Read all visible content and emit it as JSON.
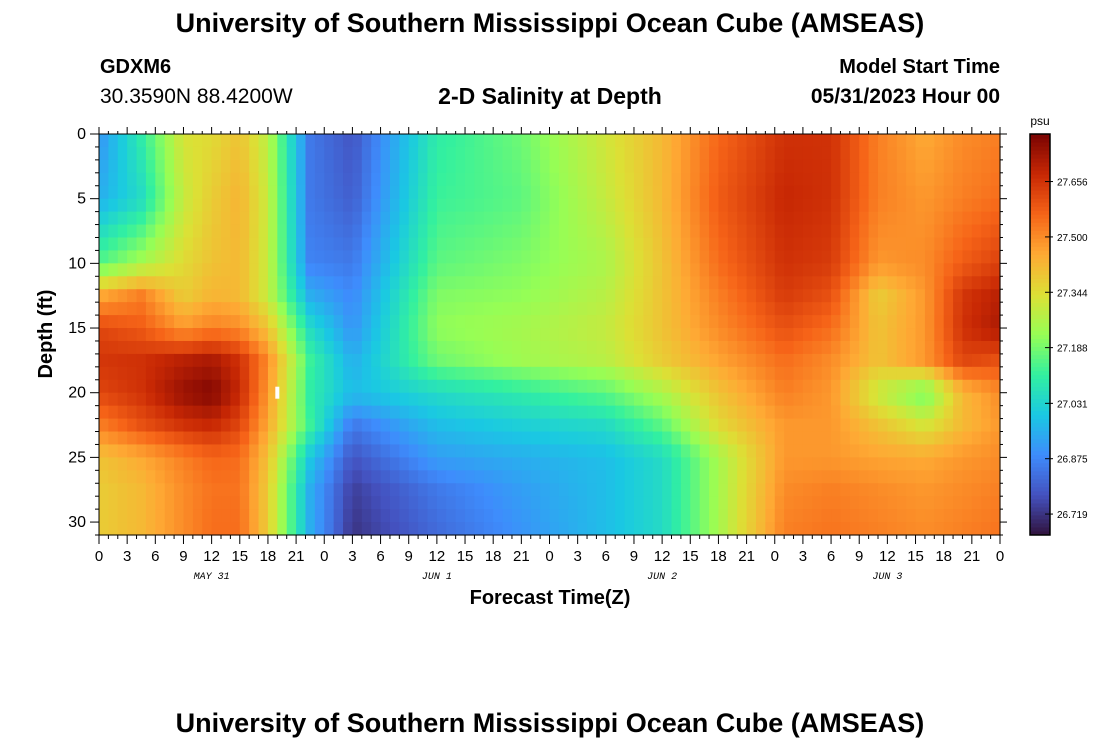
{
  "header": {
    "title": "University of Southern Mississippi Ocean Cube (AMSEAS)",
    "station_id": "GDXM6",
    "coordinates": "30.3590N  88.4200W",
    "plot_title": "2-D Salinity at Depth",
    "model_start_label": "Model Start Time",
    "model_start_value": "05/31/2023 Hour 00"
  },
  "footer": {
    "title": "University of Southern Mississippi Ocean Cube (AMSEAS)"
  },
  "chart_data": {
    "type": "heatmap",
    "xlabel": "Forecast Time(Z)",
    "ylabel": "Depth (ft)",
    "x_tick_labels": [
      "0",
      "3",
      "6",
      "9",
      "12",
      "15",
      "18",
      "21",
      "0",
      "3",
      "6",
      "9",
      "12",
      "15",
      "18",
      "21",
      "0",
      "3",
      "6",
      "9",
      "12",
      "15",
      "18",
      "21",
      "0",
      "3",
      "6",
      "9",
      "12",
      "15",
      "18",
      "21",
      "0"
    ],
    "x_range_hours": [
      0,
      96
    ],
    "day_labels": [
      {
        "hour": 12,
        "label": "MAY 31"
      },
      {
        "hour": 36,
        "label": "JUN 1"
      },
      {
        "hour": 60,
        "label": "JUN 2"
      },
      {
        "hour": 84,
        "label": "JUN 3"
      }
    ],
    "y_tick_values": [
      0,
      5,
      10,
      15,
      20,
      25,
      30
    ],
    "ylim": [
      0,
      31
    ],
    "y_inverted": true,
    "colorbar": {
      "unit": "psu",
      "ticks": [
        27.656,
        27.5,
        27.344,
        27.188,
        27.031,
        26.875,
        26.719
      ],
      "tick_labels": [
        "27.656",
        "27.500",
        "27.344",
        "27.188",
        "27.031",
        "26.875",
        "26.719"
      ],
      "range": [
        26.66,
        27.79
      ],
      "colormap": "turbo"
    },
    "marker": {
      "hour": 19,
      "depth_ft": 20
    },
    "grid": {
      "hours": [
        0,
        4.5,
        9,
        12,
        15,
        18,
        22.5,
        27,
        36,
        45,
        54,
        60,
        66,
        73,
        78,
        83,
        88,
        92,
        96
      ],
      "depths": [
        0,
        5,
        10,
        12.5,
        15,
        17.5,
        20,
        22.5,
        25,
        27.5,
        31
      ],
      "salinity": [
        [
          26.9,
          27.1,
          27.33,
          27.35,
          27.4,
          27.28,
          26.85,
          26.78,
          27.1,
          27.18,
          27.32,
          27.42,
          27.56,
          27.66,
          27.66,
          27.52,
          27.45,
          27.5,
          27.52
        ],
        [
          26.95,
          27.05,
          27.3,
          27.38,
          27.43,
          27.3,
          26.85,
          26.8,
          27.12,
          27.16,
          27.3,
          27.42,
          27.58,
          27.68,
          27.66,
          27.52,
          27.48,
          27.52,
          27.55
        ],
        [
          27.15,
          27.25,
          27.35,
          27.4,
          27.42,
          27.3,
          26.87,
          26.85,
          27.16,
          27.2,
          27.26,
          27.4,
          27.55,
          27.66,
          27.64,
          27.48,
          27.5,
          27.58,
          27.63
        ],
        [
          27.45,
          27.52,
          27.38,
          27.43,
          27.42,
          27.3,
          26.95,
          26.88,
          27.2,
          27.22,
          27.28,
          27.4,
          27.52,
          27.64,
          27.6,
          27.38,
          27.48,
          27.65,
          27.7
        ],
        [
          27.62,
          27.58,
          27.48,
          27.52,
          27.5,
          27.4,
          27.05,
          26.9,
          27.22,
          27.25,
          27.3,
          27.4,
          27.5,
          27.6,
          27.55,
          27.4,
          27.48,
          27.66,
          27.72
        ],
        [
          27.65,
          27.66,
          27.7,
          27.72,
          27.66,
          27.5,
          27.12,
          26.95,
          27.18,
          27.24,
          27.28,
          27.38,
          27.46,
          27.55,
          27.5,
          27.4,
          27.48,
          27.62,
          27.6
        ],
        [
          27.62,
          27.66,
          27.75,
          27.78,
          27.68,
          27.48,
          27.1,
          26.98,
          27.05,
          27.1,
          27.16,
          27.26,
          27.4,
          27.52,
          27.48,
          27.3,
          27.18,
          27.42,
          27.5
        ],
        [
          27.52,
          27.6,
          27.66,
          27.68,
          27.62,
          27.45,
          27.12,
          26.85,
          26.98,
          27.02,
          27.05,
          27.16,
          27.35,
          27.48,
          27.48,
          27.4,
          27.32,
          27.42,
          27.48
        ],
        [
          27.4,
          27.45,
          27.52,
          27.56,
          27.55,
          27.4,
          27.0,
          26.78,
          26.92,
          26.95,
          26.98,
          27.05,
          27.25,
          27.48,
          27.48,
          27.46,
          27.45,
          27.48,
          27.5
        ],
        [
          27.38,
          27.42,
          27.5,
          27.54,
          27.54,
          27.38,
          26.95,
          26.74,
          26.85,
          26.92,
          26.98,
          27.05,
          27.25,
          27.5,
          27.52,
          27.5,
          27.48,
          27.5,
          27.52
        ],
        [
          27.38,
          27.42,
          27.5,
          27.55,
          27.55,
          27.38,
          26.95,
          26.72,
          26.82,
          26.9,
          26.98,
          27.05,
          27.25,
          27.52,
          27.54,
          27.52,
          27.5,
          27.52,
          27.54
        ]
      ]
    }
  }
}
